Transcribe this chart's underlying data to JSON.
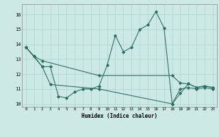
{
  "title": "",
  "xlabel": "Humidex (Indice chaleur)",
  "xlim": [
    -0.5,
    23.5
  ],
  "ylim": [
    9.8,
    16.7
  ],
  "yticks": [
    10,
    11,
    12,
    13,
    14,
    15,
    16
  ],
  "xticks": [
    0,
    1,
    2,
    3,
    4,
    5,
    6,
    7,
    8,
    9,
    10,
    11,
    12,
    13,
    14,
    15,
    16,
    17,
    18,
    19,
    20,
    21,
    22,
    23
  ],
  "bg_color": "#cce9e5",
  "line_color": "#2e6e65",
  "grid_color": "#aad4ce",
  "line1_x": [
    0,
    1,
    2,
    3,
    4,
    5,
    6,
    7,
    8,
    9,
    10,
    11,
    12,
    13,
    14,
    15,
    16,
    17,
    18,
    19,
    20,
    21,
    22,
    23
  ],
  "line1_y": [
    13.8,
    13.2,
    12.5,
    12.5,
    10.5,
    10.4,
    10.8,
    11.0,
    11.0,
    11.2,
    12.6,
    14.6,
    13.5,
    13.8,
    15.0,
    15.3,
    16.2,
    15.1,
    10.0,
    10.7,
    11.35,
    11.1,
    11.2,
    11.1
  ],
  "line2_x": [
    0,
    1,
    2,
    9,
    18,
    19,
    20,
    21,
    22,
    23
  ],
  "line2_y": [
    13.8,
    13.2,
    12.9,
    11.9,
    11.9,
    11.4,
    11.35,
    11.1,
    11.2,
    11.1
  ],
  "line3_x": [
    0,
    2,
    3,
    9,
    18,
    19,
    20,
    21,
    22,
    23
  ],
  "line3_y": [
    13.8,
    12.5,
    11.3,
    11.0,
    10.0,
    11.0,
    11.1,
    11.0,
    11.1,
    11.0
  ]
}
